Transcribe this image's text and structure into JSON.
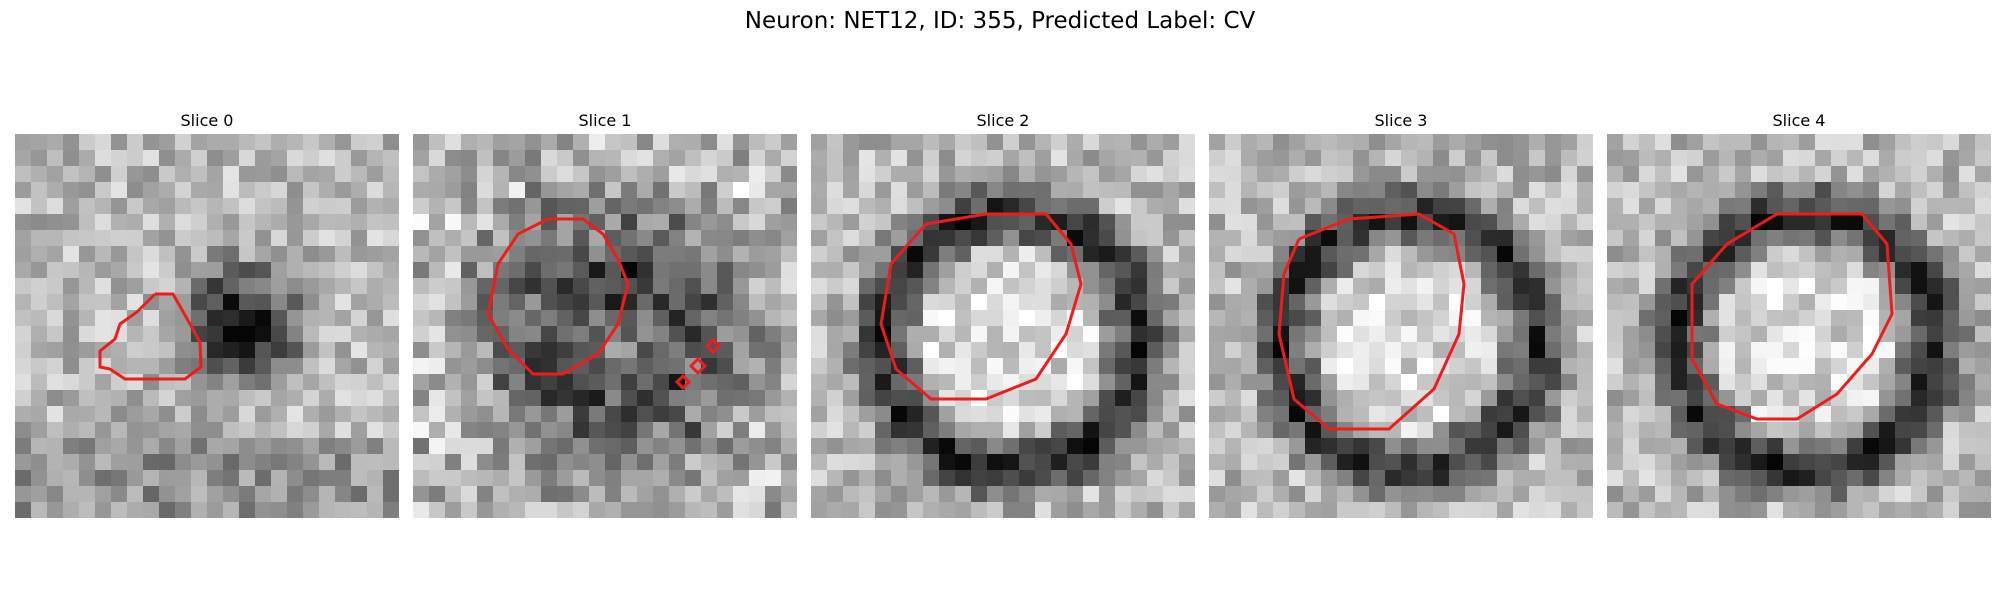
{
  "figure": {
    "title": "Neuron: NET12, ID: 355, Predicted Label: CV"
  },
  "colors": {
    "contour": "#ee1c1c"
  },
  "slices": [
    {
      "label": "Slice 0",
      "seed": 11,
      "pattern": "spot"
    },
    {
      "label": "Slice 1",
      "seed": 23,
      "pattern": "ring-dark"
    },
    {
      "label": "Slice 2",
      "seed": 37,
      "pattern": "ring"
    },
    {
      "label": "Slice 3",
      "seed": 49,
      "pattern": "ring"
    },
    {
      "label": "Slice 4",
      "seed": 61,
      "pattern": "ring"
    }
  ]
}
